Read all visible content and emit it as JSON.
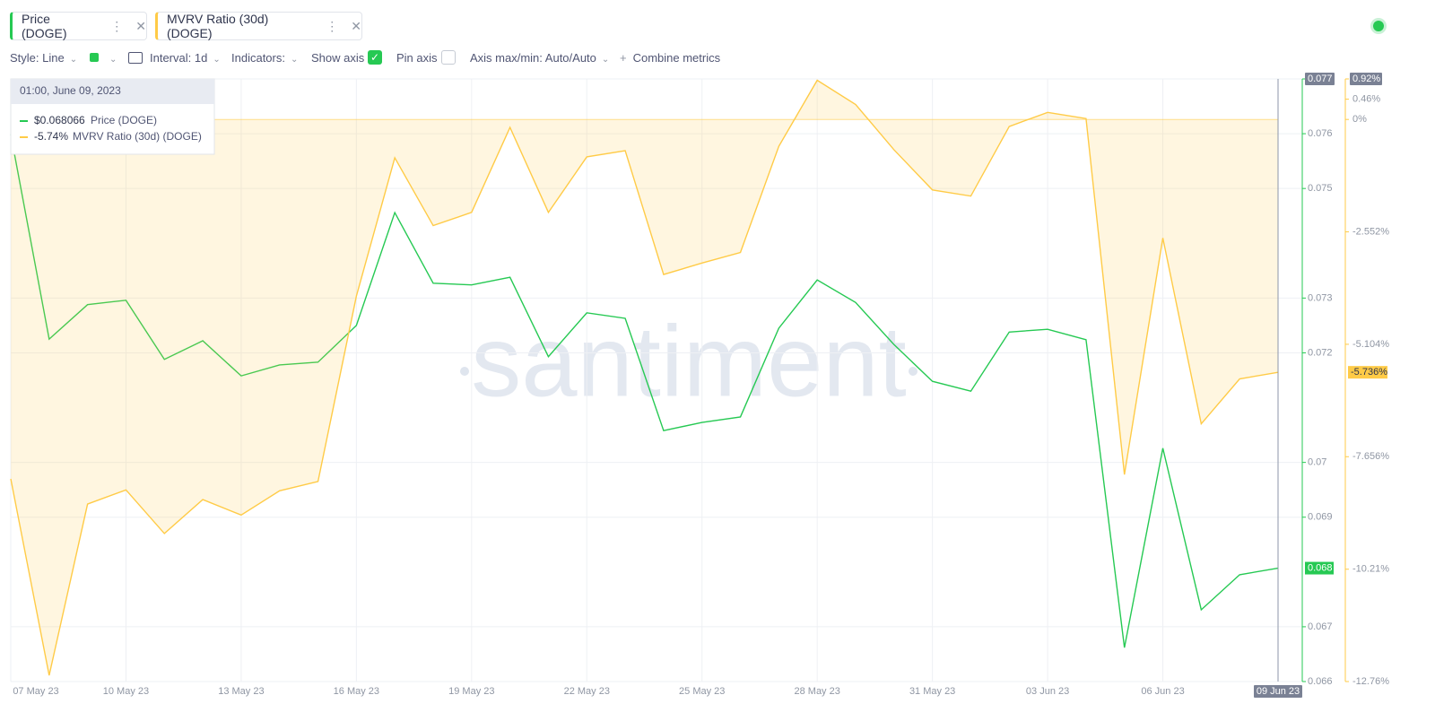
{
  "toolbar": {
    "style": "Style: Line",
    "interval": "Interval: 1d",
    "indicators": "Indicators:",
    "show_axis": "Show axis",
    "pin_axis": "Pin axis",
    "axis_maxmin": "Axis max/min: Auto/Auto",
    "combine": "Combine metrics"
  },
  "tooltip": {
    "time": "01:00, June 09, 2023",
    "rows": [
      "$0.068066",
      "-5.74%"
    ]
  },
  "chart_data": {
    "type": "line",
    "watermark": "santiment",
    "categories": [
      "07 May 23",
      null,
      null,
      "10 May 23",
      null,
      null,
      "13 May 23",
      null,
      null,
      "16 May 23",
      null,
      null,
      "19 May 23",
      null,
      null,
      "22 May 23",
      null,
      null,
      "25 May 23",
      null,
      null,
      "28 May 23",
      null,
      null,
      "31 May 23",
      null,
      null,
      "03 Jun 23",
      null,
      null,
      "06 Jun 23",
      null,
      null,
      "09 Jun 23"
    ],
    "series": [
      {
        "name": "Price (DOGE)",
        "color": "#26c953",
        "axis": "y",
        "current_label": "0.068",
        "values": [
          0.07599,
          0.07225,
          0.07288,
          0.07296,
          0.07188,
          0.07222,
          0.07158,
          0.07178,
          0.07183,
          0.0725,
          0.07456,
          0.07327,
          0.07324,
          0.07338,
          0.07193,
          0.07273,
          0.07263,
          0.07058,
          0.07073,
          0.07083,
          0.07245,
          0.07333,
          0.07292,
          0.07215,
          0.07148,
          0.0713,
          0.07238,
          0.07243,
          0.07224,
          0.06662,
          0.07026,
          0.06731,
          0.06795,
          0.06807
        ]
      },
      {
        "name": "MVRV Ratio (30d) (DOGE)",
        "color": "#ffcb47",
        "axis": "y2",
        "area": true,
        "current_label": "-5.736%",
        "values": [
          -8.16,
          -12.62,
          -8.73,
          -8.41,
          -9.4,
          -8.63,
          -8.98,
          -8.43,
          -8.22,
          -4.01,
          -0.87,
          -2.41,
          -2.11,
          -0.18,
          -2.11,
          -0.85,
          -0.71,
          -3.52,
          -3.26,
          -3.02,
          -0.61,
          0.89,
          0.34,
          -0.69,
          -1.6,
          -1.74,
          -0.16,
          0.16,
          0.02,
          -8.06,
          -2.69,
          -6.91,
          -5.89,
          -5.74
        ]
      }
    ],
    "ylim": [
      0.066,
      0.077
    ],
    "yticks": [
      0.066,
      0.067,
      0.069,
      0.07,
      0.072,
      0.073,
      0.075,
      0.076,
      0.077
    ],
    "y2lim": [
      -12.76,
      0.92
    ],
    "y2ticks": [
      {
        "value": -12.76,
        "label": "-12.76%"
      },
      {
        "value": -10.21,
        "label": "-10.21%"
      },
      {
        "value": -7.656,
        "label": "-7.656%"
      },
      {
        "value": -5.104,
        "label": "-5.104%"
      },
      {
        "value": -2.552,
        "label": "-2.552%"
      },
      {
        "value": 0,
        "label": "0%"
      },
      {
        "value": 0.46,
        "label": "0.46%"
      },
      {
        "value": 0.92,
        "label": "0.92%"
      }
    ],
    "grid": true
  }
}
